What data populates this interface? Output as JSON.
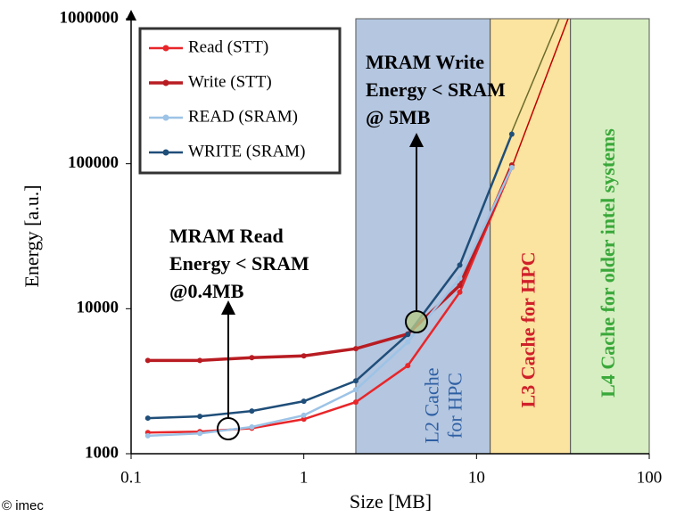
{
  "chart_data": {
    "type": "line",
    "x_label": "Size [MB]",
    "y_label": "Energy [a.u.]",
    "log_x": true,
    "log_y": true,
    "xlim": [
      0.1,
      100
    ],
    "xticks": [
      0.1,
      1,
      10,
      100
    ],
    "ylim": [
      1000,
      1000000
    ],
    "yticks": [
      1000,
      10000,
      100000,
      1000000
    ],
    "x": [
      0.125,
      0.25,
      0.5,
      1,
      2,
      4,
      8,
      16
    ],
    "series": [
      {
        "name": "Read (STT)",
        "color": "#e8262a",
        "values": [
          1400,
          1420,
          1500,
          1730,
          2270,
          4050,
          13000,
          94000
        ]
      },
      {
        "name": "Write (STT)",
        "color": "#b81c22",
        "values": [
          4400,
          4400,
          4600,
          4730,
          5300,
          6700,
          14500,
          98000
        ]
      },
      {
        "name": "READ (SRAM)",
        "color": "#9dc3e6",
        "values": [
          1330,
          1380,
          1530,
          1840,
          2760,
          5900,
          16200,
          94000
        ]
      },
      {
        "name": "WRITE (SRAM)",
        "color": "#1f4e79",
        "values": [
          1760,
          1810,
          1970,
          2300,
          3180,
          6640,
          20000,
          160000
        ]
      }
    ],
    "regions": [
      {
        "lines": [
          "L2 Cache",
          "for HPC"
        ],
        "from": 2,
        "to": 12,
        "color": "#b4c6e0",
        "text_color": "#2e5fa3"
      },
      {
        "lines": [
          "L3 Cache for HPC"
        ],
        "from": 12,
        "to": 35,
        "color": "#fbe3a0",
        "text_color": "#d0202a"
      },
      {
        "lines": [
          "L4 Cache for older intel systems"
        ],
        "from": 35,
        "to": 100,
        "color": "#d6eec2",
        "text_color": "#3aa83a"
      }
    ],
    "annotations": [
      {
        "lines": [
          "MRAM Read",
          "Energy < SRAM",
          "@0.4MB"
        ]
      },
      {
        "lines": [
          "MRAM Write",
          "Energy < SRAM",
          "@ 5MB"
        ]
      }
    ],
    "legend": "upper left",
    "footer": "© imec"
  }
}
